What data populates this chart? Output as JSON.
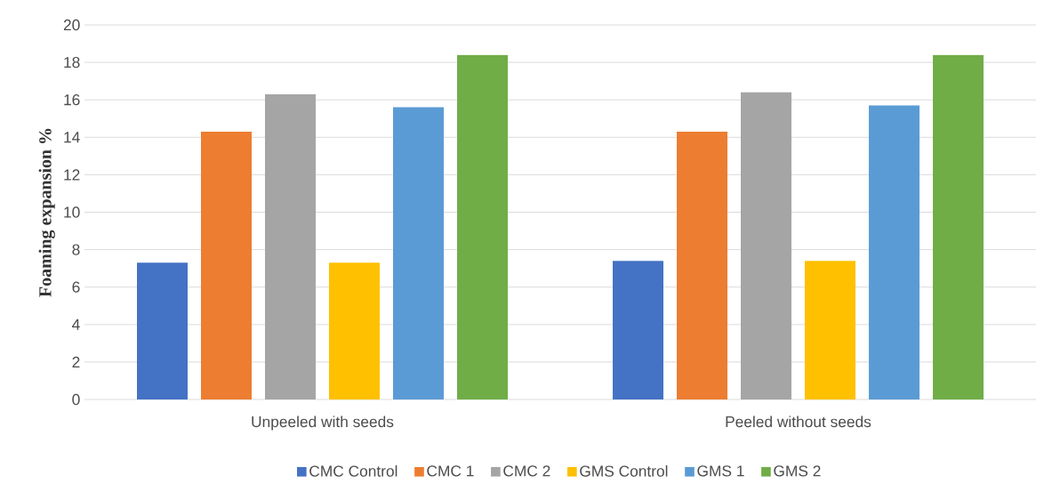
{
  "chart_data": {
    "type": "bar",
    "ylabel": "Foaming expansion %",
    "categories": [
      "Unpeeled with seeds",
      "Peeled without seeds"
    ],
    "series": [
      {
        "name": "CMC Control",
        "color": "#4472c4",
        "values": [
          7.3,
          7.4
        ]
      },
      {
        "name": "CMC 1",
        "color": "#ed7d31",
        "values": [
          14.3,
          14.3
        ]
      },
      {
        "name": "CMC 2",
        "color": "#a5a5a5",
        "values": [
          16.3,
          16.4
        ]
      },
      {
        "name": "GMS Control",
        "color": "#ffc000",
        "values": [
          7.3,
          7.4
        ]
      },
      {
        "name": "GMS 1",
        "color": "#5b9bd5",
        "values": [
          15.6,
          15.7
        ]
      },
      {
        "name": "GMS 2",
        "color": "#70ad47",
        "values": [
          18.4,
          18.4
        ]
      }
    ],
    "ylim": [
      0,
      20
    ],
    "yticks": [
      0,
      2,
      4,
      6,
      8,
      10,
      12,
      14,
      16,
      18,
      20
    ],
    "grid": "y",
    "legend": "bottom"
  }
}
